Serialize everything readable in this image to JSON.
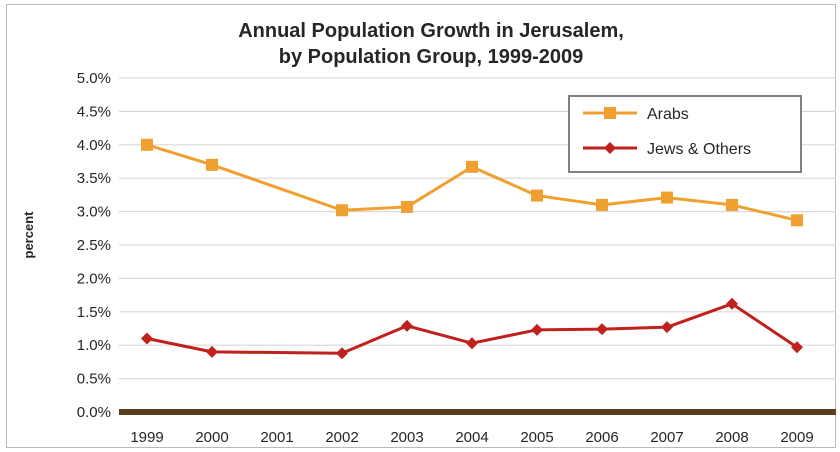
{
  "chart_data": {
    "type": "line",
    "title_lines": [
      "Annual Population Growth in Jerusalem,",
      "by Population Group, 1999-2009"
    ],
    "xlabel": "",
    "ylabel": "percent",
    "x": [
      1999,
      2000,
      2002,
      2003,
      2004,
      2005,
      2006,
      2007,
      2008,
      2009
    ],
    "x_ticks": [
      "1999",
      "2000",
      "2001",
      "2002",
      "2003",
      "2004",
      "2005",
      "2006",
      "2007",
      "2008",
      "2009"
    ],
    "y_ticks": [
      "0.0%",
      "0.5%",
      "1.0%",
      "1.5%",
      "2.0%",
      "2.5%",
      "3.0%",
      "3.5%",
      "4.0%",
      "4.5%",
      "5.0%"
    ],
    "ylim": [
      0,
      5
    ],
    "xlim": [
      1999,
      2009
    ],
    "grid": true,
    "legend_position": "top-right",
    "series": [
      {
        "name": "Arabs",
        "color": "#f0a030",
        "marker": "square",
        "values": [
          4.0,
          3.7,
          3.02,
          3.07,
          3.67,
          3.24,
          3.1,
          3.21,
          3.1,
          2.87
        ]
      },
      {
        "name": "Jews & Others",
        "color": "#c0211d",
        "marker": "diamond",
        "values": [
          1.1,
          0.9,
          0.88,
          1.29,
          1.03,
          1.23,
          1.24,
          1.27,
          1.62,
          0.97
        ]
      }
    ]
  }
}
